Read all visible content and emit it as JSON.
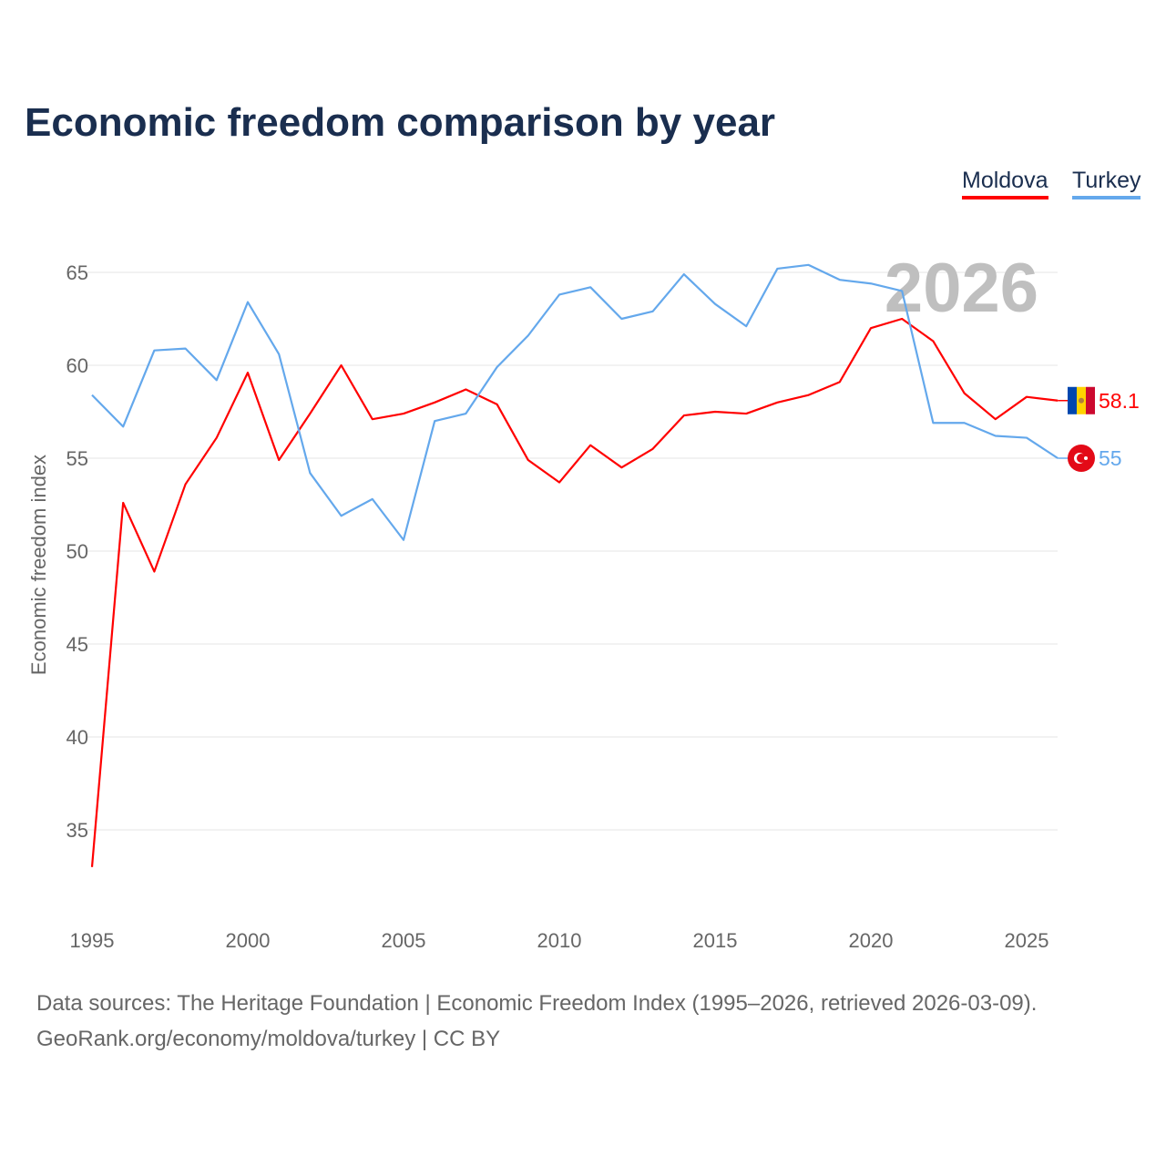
{
  "title": "Economic freedom comparison by year",
  "legend": [
    {
      "name": "Moldova",
      "color": "#ff0000"
    },
    {
      "name": "Turkey",
      "color": "#64a8ec"
    }
  ],
  "year_watermark": "2026",
  "footer": {
    "line1": "Data sources: The Heritage Foundation | Economic Freedom Index (1995–2026, retrieved 2026-03-09).",
    "line2": "GeoRank.org/economy/moldova/turkey | CC BY"
  },
  "chart_data": {
    "type": "line",
    "title": "Economic freedom comparison by year",
    "xlabel": "",
    "ylabel": "Economic freedom index",
    "xlim": [
      1995,
      2026
    ],
    "ylim": [
      31,
      67
    ],
    "xticks": [
      1995,
      2000,
      2005,
      2010,
      2015,
      2020,
      2025
    ],
    "yticks": [
      35,
      40,
      45,
      50,
      55,
      60,
      65
    ],
    "grid": true,
    "legend_position": "top-right",
    "x": [
      1995,
      1996,
      1997,
      1998,
      1999,
      2000,
      2001,
      2002,
      2003,
      2004,
      2005,
      2006,
      2007,
      2008,
      2009,
      2010,
      2011,
      2012,
      2013,
      2014,
      2015,
      2016,
      2017,
      2018,
      2019,
      2020,
      2021,
      2022,
      2023,
      2024,
      2025,
      2026
    ],
    "series": [
      {
        "name": "Moldova",
        "color": "#ff0000",
        "end_label": "58.1",
        "values": [
          33.0,
          52.6,
          48.9,
          53.6,
          56.1,
          59.6,
          54.9,
          57.4,
          60.0,
          57.1,
          57.4,
          58.0,
          58.7,
          57.9,
          54.9,
          53.7,
          55.7,
          54.5,
          55.5,
          57.3,
          57.5,
          57.4,
          58.0,
          58.4,
          59.1,
          62.0,
          62.5,
          61.3,
          58.5,
          57.1,
          58.3,
          58.1
        ]
      },
      {
        "name": "Turkey",
        "color": "#64a8ec",
        "end_label": "55",
        "values": [
          58.4,
          56.7,
          60.8,
          60.9,
          59.2,
          63.4,
          60.6,
          54.2,
          51.9,
          52.8,
          50.6,
          57.0,
          57.4,
          59.9,
          61.6,
          63.8,
          64.2,
          62.5,
          62.9,
          64.9,
          63.3,
          62.1,
          65.2,
          65.4,
          64.6,
          64.4,
          64.0,
          56.9,
          56.9,
          56.2,
          56.1,
          55.0
        ]
      }
    ]
  }
}
